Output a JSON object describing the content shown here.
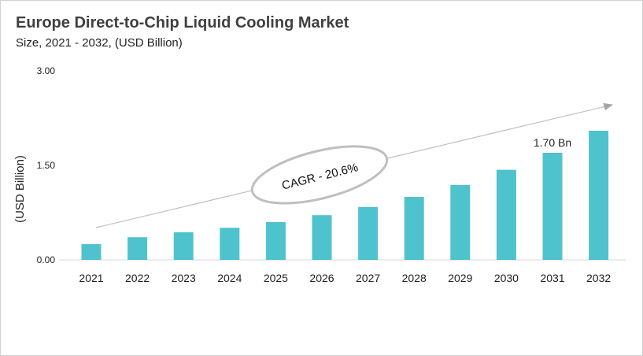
{
  "chart_data": {
    "type": "bar",
    "title": "Europe Direct-to-Chip Liquid Cooling Market",
    "subtitle": "Size, 2021 - 2032, (USD Billion)",
    "ylabel": "(USD Billion)",
    "xlabel": "",
    "categories": [
      "2021",
      "2022",
      "2023",
      "2024",
      "2025",
      "2026",
      "2027",
      "2028",
      "2029",
      "2030",
      "2031",
      "2032"
    ],
    "values": [
      0.25,
      0.36,
      0.44,
      0.51,
      0.6,
      0.71,
      0.84,
      1.0,
      1.19,
      1.43,
      1.7,
      2.05
    ],
    "ylim": [
      0,
      3
    ],
    "yticks": [
      "0.00",
      "1.50",
      "3.00"
    ],
    "grid": false,
    "bar_color": "#4fc3cd",
    "annotations": {
      "bar_label": "1.70 Bn",
      "bar_label_index": 10,
      "cagr": "CAGR - 20.6%"
    }
  }
}
